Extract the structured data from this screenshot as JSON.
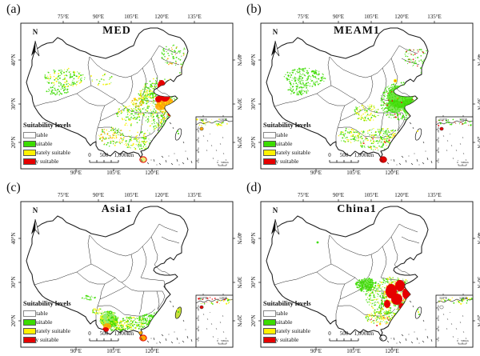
{
  "figure": {
    "background": "#ffffff",
    "north_label": "N",
    "panels": [
      {
        "id": "a",
        "label": "(a)",
        "title": "MED",
        "hotspot_summary": "highly suitable core in the North China Plain (red), moderate belt around it, low suitability scattered over east, northwest and south China"
      },
      {
        "id": "b",
        "label": "(b)",
        "title": "MEAM1",
        "hotspot_summary": "broad low suitability over eastern and southern China, Hainan highly suitable, sparse patches in Xinjiang and the northeast"
      },
      {
        "id": "c",
        "label": "(c)",
        "title": "Asia1",
        "hotspot_summary": "suitability restricted to far southern China; highly suitable in southern Yunnan and on Hainan/Leizhou"
      },
      {
        "id": "d",
        "label": "(d)",
        "title": "China1",
        "hotspot_summary": "highly suitable cluster in south-central China (Hunan-Jiangxi-Hubei) with green fringe and a green Sichuan basin patch"
      }
    ],
    "axis": {
      "top": [
        "75°E",
        "90°E",
        "105°E",
        "120°E",
        "135°E"
      ],
      "bottom": [
        "90°E",
        "105°E",
        "120°E"
      ],
      "left": [
        "40°N",
        "30°N",
        "20°N"
      ],
      "right": [
        "40°N",
        "30°N",
        "20°N"
      ]
    },
    "legend": {
      "title": "Suitability levels",
      "items": [
        {
          "label": "unsuitable",
          "color": "#FFFFFF"
        },
        {
          "label": "low suitable",
          "color": "#3CDC00"
        },
        {
          "label": "moderately suitable",
          "color": "#FFF200"
        },
        {
          "label": "highly suitable",
          "color": "#E60000"
        }
      ]
    },
    "scalebar": {
      "labels": [
        "0",
        "500",
        "1,000km"
      ]
    },
    "inset": {
      "top": [
        "110°E",
        "120°E"
      ],
      "left": [
        "20°N",
        "15°N",
        "10°N",
        "5°N"
      ],
      "scale_start": "0",
      "scale_label": "500km"
    }
  }
}
